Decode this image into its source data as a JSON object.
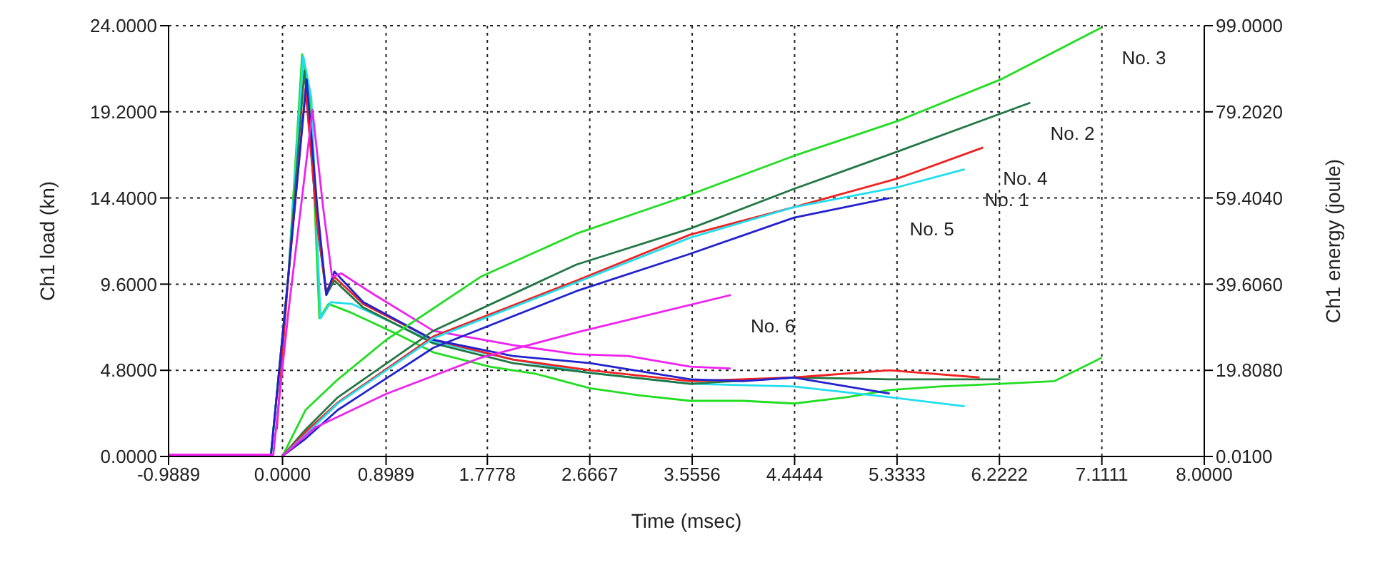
{
  "chart_data": {
    "type": "line",
    "xlabel": "Time (msec)",
    "ylabel": "Ch1 load (kn)",
    "y2label": "Ch1 energy (joule)",
    "xlim": [
      -0.9889,
      8.0
    ],
    "xticks": [
      {
        "value": -0.9889,
        "label": "-0.9889"
      },
      {
        "value": 0,
        "label": "0.0000"
      },
      {
        "value": 0.8989,
        "label": "0.8989"
      },
      {
        "value": 1.7778,
        "label": "1.7778"
      },
      {
        "value": 2.6667,
        "label": "2.6667"
      },
      {
        "value": 3.5556,
        "label": "3.5556"
      },
      {
        "value": 4.4444,
        "label": "4.4444"
      },
      {
        "value": 5.3333,
        "label": "5.3333"
      },
      {
        "value": 6.2222,
        "label": "6.2222"
      },
      {
        "value": 7.1111,
        "label": "7.1111"
      },
      {
        "value": 8.0,
        "label": "8.0000"
      }
    ],
    "ylim": [
      0,
      24
    ],
    "yticks": [
      {
        "value": 0,
        "label": "0.0000"
      },
      {
        "value": 4.8,
        "label": "4.8000"
      },
      {
        "value": 9.6,
        "label": "9.6000"
      },
      {
        "value": 14.4,
        "label": "14.4000"
      },
      {
        "value": 19.2,
        "label": "19.2000"
      },
      {
        "value": 24,
        "label": "24.0000"
      }
    ],
    "y2lim": [
      0.01,
      99.0
    ],
    "y2ticks": [
      {
        "value": 0.01,
        "label": "0.0100"
      },
      {
        "value": 19.808,
        "label": "19.8080"
      },
      {
        "value": 39.606,
        "label": "39.6060"
      },
      {
        "value": 59.404,
        "label": "59.4040"
      },
      {
        "value": 79.202,
        "label": "79.2020"
      },
      {
        "value": 99.0,
        "label": "99.0000"
      }
    ],
    "grid": true,
    "line_style": "solid",
    "marker": "none",
    "series": [
      {
        "color": "#22dd22",
        "x": [
          -0.9889,
          -0.1,
          0.05,
          0.17,
          0.24,
          0.32,
          0.4,
          0.6,
          1.0,
          1.31,
          1.8,
          2.2,
          2.67,
          3.1,
          3.54,
          4.0,
          4.44,
          4.9,
          5.27,
          5.7,
          6.23,
          6.7,
          7.11
        ],
        "values": [
          0.1,
          0.1,
          10,
          22.4,
          20,
          7.7,
          8.5,
          8.0,
          6.8,
          5.8,
          5.0,
          4.6,
          3.8,
          3.4,
          3.1,
          3.1,
          2.95,
          3.3,
          3.7,
          3.9,
          4.05,
          4.2,
          5.5
        ]
      },
      {
        "color": "#22ddee",
        "x": [
          -0.9889,
          -0.1,
          0.05,
          0.18,
          0.25,
          0.33,
          0.42,
          0.6,
          1.31,
          2.0,
          2.67,
          3.54,
          4.44,
          5.27,
          5.92
        ],
        "values": [
          0.1,
          0.1,
          10,
          22.3,
          20,
          7.7,
          8.6,
          8.5,
          6.4,
          5.4,
          4.65,
          4.05,
          3.9,
          3.3,
          2.8
        ]
      },
      {
        "color": "#227744",
        "x": [
          -0.9889,
          -0.1,
          0.05,
          0.19,
          0.3,
          0.38,
          0.45,
          0.7,
          1.31,
          2.0,
          2.67,
          3.54,
          4.44,
          5.27,
          6.23
        ],
        "values": [
          0.1,
          0.1,
          10,
          21.5,
          13,
          9.0,
          9.8,
          8.3,
          6.3,
          5.2,
          4.65,
          4.05,
          4.4,
          4.3,
          4.3
        ]
      },
      {
        "color": "#ee2222",
        "x": [
          -0.05,
          0.05,
          0.2,
          0.3,
          0.38,
          0.45,
          0.7,
          1.31,
          2.0,
          2.67,
          3.54,
          4.44,
          5.27,
          6.05
        ],
        "values": [
          1.5,
          10,
          20.5,
          13,
          9.2,
          10.0,
          8.5,
          6.5,
          5.4,
          4.8,
          4.2,
          4.4,
          4.8,
          4.4
        ]
      },
      {
        "color": "#2222cc",
        "x": [
          -0.9889,
          -0.1,
          0.05,
          0.21,
          0.3,
          0.38,
          0.45,
          0.7,
          1.31,
          2.0,
          2.67,
          3.54,
          4.0,
          4.44,
          4.9,
          5.27
        ],
        "values": [
          0.1,
          0.1,
          10,
          21.0,
          14,
          9.0,
          10.3,
          8.6,
          6.5,
          5.6,
          5.2,
          4.3,
          4.2,
          4.4,
          3.9,
          3.5
        ]
      },
      {
        "color": "#ee22ee",
        "x": [
          -0.9889,
          -0.08,
          0.05,
          0.26,
          0.35,
          0.43,
          0.51,
          0.8,
          1.31,
          2.0,
          2.55,
          3.0,
          3.54,
          3.89
        ],
        "values": [
          0.1,
          0.1,
          8,
          19.3,
          14,
          10,
          10.2,
          9.0,
          7.0,
          6.2,
          5.7,
          5.6,
          5.0,
          4.9
        ]
      },
      {
        "name": "No. 3",
        "axis": "y2",
        "color": "#22dd22",
        "x": [
          0,
          0.2,
          0.48,
          0.9,
          1.72,
          2.55,
          3.54,
          4.44,
          5.34,
          6.23,
          7.11
        ],
        "values": [
          0.1,
          10.7,
          17.7,
          26.8,
          41.3,
          51.2,
          60.2,
          69.1,
          77.1,
          86.6,
          98.6
        ]
      },
      {
        "name": "No. 2",
        "axis": "y2",
        "color": "#227744",
        "x": [
          0,
          0.2,
          0.48,
          1.31,
          2.55,
          3.54,
          4.44,
          5.34,
          6.49
        ],
        "values": [
          0.1,
          6.2,
          13.6,
          28.9,
          44.1,
          52.4,
          61.5,
          70.1,
          81.3
        ]
      },
      {
        "name": "No. 4",
        "axis": "y2",
        "color": "#ee2222",
        "x": [
          0,
          0.2,
          0.48,
          1.31,
          2.55,
          3.54,
          4.44,
          5.34,
          6.08
        ],
        "values": [
          0.1,
          5.6,
          12.4,
          27.6,
          40.4,
          51.0,
          57.3,
          63.9,
          71.0
        ]
      },
      {
        "name": "No. 1",
        "axis": "y2",
        "color": "#22ddee",
        "x": [
          0,
          0.2,
          0.48,
          1.31,
          2.55,
          3.54,
          4.44,
          5.34,
          5.92
        ],
        "values": [
          0.1,
          5.0,
          12.2,
          27.2,
          40.0,
          50.3,
          57.3,
          61.9,
          66.0
        ]
      },
      {
        "name": "No. 5",
        "axis": "y2",
        "color": "#2222cc",
        "x": [
          0,
          0.2,
          0.48,
          1.31,
          2.55,
          3.54,
          4.44,
          5.27
        ],
        "values": [
          0.1,
          4.1,
          10.7,
          25.0,
          38.0,
          46.6,
          54.9,
          59.4
        ]
      },
      {
        "name": "No. 6",
        "axis": "y2",
        "color": "#ee22ee",
        "x": [
          0,
          0.28,
          0.9,
          1.72,
          2.55,
          3.89
        ],
        "values": [
          0.1,
          6.6,
          14.4,
          22.7,
          28.5,
          37.1
        ]
      }
    ]
  }
}
